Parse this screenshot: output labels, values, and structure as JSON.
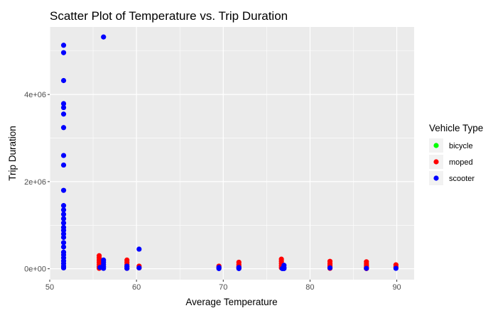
{
  "chart_data": {
    "type": "scatter",
    "title": "Scatter Plot of Temperature vs. Trip Duration",
    "xlabel": "Average Temperature",
    "ylabel": "Trip Duration",
    "xlim": [
      50,
      92
    ],
    "ylim": [
      -250000,
      5550000
    ],
    "xticks": [
      50,
      60,
      70,
      80,
      90
    ],
    "xtick_labels": [
      "50",
      "60",
      "70",
      "80",
      "90"
    ],
    "yticks": [
      0,
      2000000,
      4000000
    ],
    "ytick_labels": [
      "0e+00",
      "2e+06",
      "4e+06"
    ],
    "grid": true,
    "panel_background": "#ebebeb",
    "legend": {
      "title": "Vehicle Type",
      "position": "right",
      "entries": [
        {
          "label": "bicycle",
          "color": "#00ff00"
        },
        {
          "label": "moped",
          "color": "#ff0000"
        },
        {
          "label": "scooter",
          "color": "#0000ff"
        }
      ]
    },
    "series": [
      {
        "name": "moped",
        "color": "#ff0000",
        "points": [
          [
            55.7,
            300000
          ],
          [
            55.7,
            250000
          ],
          [
            55.7,
            200000
          ],
          [
            55.7,
            150000
          ],
          [
            55.7,
            100000
          ],
          [
            55.7,
            50000
          ],
          [
            55.7,
            10000
          ],
          [
            58.9,
            200000
          ],
          [
            58.9,
            150000
          ],
          [
            58.9,
            100000
          ],
          [
            58.9,
            50000
          ],
          [
            58.9,
            10000
          ],
          [
            60.3,
            60000
          ],
          [
            60.3,
            20000
          ],
          [
            69.5,
            60000
          ],
          [
            69.5,
            20000
          ],
          [
            71.8,
            150000
          ],
          [
            71.8,
            100000
          ],
          [
            71.8,
            60000
          ],
          [
            71.8,
            20000
          ],
          [
            76.7,
            220000
          ],
          [
            76.7,
            170000
          ],
          [
            76.7,
            120000
          ],
          [
            76.7,
            70000
          ],
          [
            76.7,
            20000
          ],
          [
            82.3,
            170000
          ],
          [
            82.3,
            120000
          ],
          [
            82.3,
            80000
          ],
          [
            82.3,
            40000
          ],
          [
            82.3,
            10000
          ],
          [
            86.5,
            160000
          ],
          [
            86.5,
            110000
          ],
          [
            86.5,
            70000
          ],
          [
            86.5,
            30000
          ],
          [
            86.5,
            5000
          ],
          [
            89.9,
            90000
          ],
          [
            89.9,
            40000
          ]
        ]
      },
      {
        "name": "scooter",
        "color": "#0000ff",
        "points": [
          [
            51.6,
            5130000
          ],
          [
            51.6,
            4960000
          ],
          [
            51.6,
            4320000
          ],
          [
            51.6,
            3790000
          ],
          [
            51.6,
            3700000
          ],
          [
            51.6,
            3550000
          ],
          [
            51.6,
            3240000
          ],
          [
            51.6,
            2600000
          ],
          [
            51.6,
            2380000
          ],
          [
            51.6,
            1800000
          ],
          [
            51.6,
            1450000
          ],
          [
            51.6,
            1350000
          ],
          [
            51.6,
            1250000
          ],
          [
            51.6,
            1150000
          ],
          [
            51.6,
            1050000
          ],
          [
            51.6,
            950000
          ],
          [
            51.6,
            880000
          ],
          [
            51.6,
            800000
          ],
          [
            51.6,
            720000
          ],
          [
            51.6,
            600000
          ],
          [
            51.6,
            500000
          ],
          [
            51.6,
            380000
          ],
          [
            51.6,
            320000
          ],
          [
            51.6,
            250000
          ],
          [
            51.6,
            180000
          ],
          [
            51.6,
            120000
          ],
          [
            51.6,
            60000
          ],
          [
            51.6,
            20000
          ],
          [
            56.2,
            5320000
          ],
          [
            56.2,
            200000
          ],
          [
            56.2,
            150000
          ],
          [
            56.2,
            100000
          ],
          [
            56.2,
            50000
          ],
          [
            56.2,
            10000
          ],
          [
            55.8,
            30000
          ],
          [
            58.9,
            60000
          ],
          [
            58.9,
            10000
          ],
          [
            60.3,
            450000
          ],
          [
            60.3,
            20000
          ],
          [
            69.5,
            30000
          ],
          [
            69.5,
            5000
          ],
          [
            71.8,
            30000
          ],
          [
            71.8,
            5000
          ],
          [
            77.0,
            80000
          ],
          [
            77.0,
            30000
          ],
          [
            77.0,
            5000
          ],
          [
            76.8,
            5000
          ],
          [
            82.3,
            20000
          ],
          [
            86.5,
            10000
          ],
          [
            89.9,
            10000
          ]
        ]
      }
    ]
  }
}
